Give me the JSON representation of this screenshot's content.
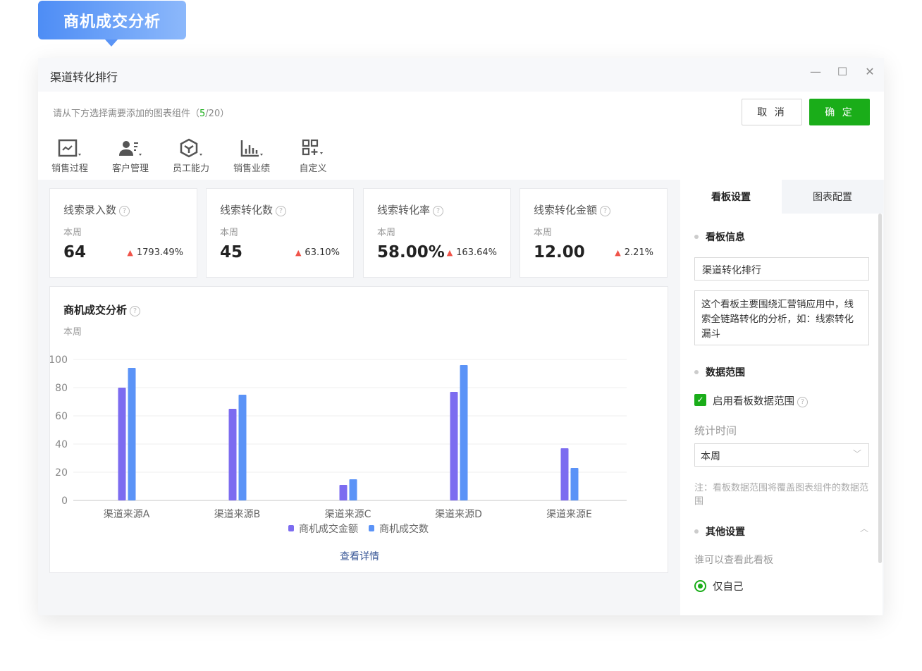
{
  "badge": {
    "title": "商机成交分析"
  },
  "window": {
    "title": "渠道转化排行",
    "minimize_icon": "minimize-icon",
    "maximize_icon": "maximize-icon",
    "close_icon": "close-icon"
  },
  "toolbar": {
    "hint_prefix": "请从下方选择需要添加的图表组件（",
    "hint_count": "5",
    "hint_suffix": "/20）",
    "cancel_label": "取 消",
    "ok_label": "确 定",
    "tools": [
      {
        "label": "销售过程",
        "icon": "line-chart-icon"
      },
      {
        "label": "客户管理",
        "icon": "user-list-icon"
      },
      {
        "label": "员工能力",
        "icon": "hexagon-icon"
      },
      {
        "label": "销售业绩",
        "icon": "bar-chart-icon"
      },
      {
        "label": "自定义",
        "icon": "grid-plus-icon"
      }
    ]
  },
  "kpis": [
    {
      "title": "线索录入数",
      "period": "本周",
      "value": "64",
      "change": "1793.49%"
    },
    {
      "title": "线索转化数",
      "period": "本周",
      "value": "45",
      "change": "63.10%"
    },
    {
      "title": "线索转化率",
      "period": "本周",
      "value": "58.00%",
      "change": "163.64%"
    },
    {
      "title": "线索转化金额",
      "period": "本周",
      "value": "12.00",
      "change": "2.21%"
    }
  ],
  "chart_card": {
    "title": "商机成交分析",
    "period": "本周",
    "detail_link": "查看详情"
  },
  "chart_data": {
    "type": "bar",
    "categories": [
      "渠道来源A",
      "渠道来源B",
      "渠道来源C",
      "渠道来源D",
      "渠道来源E"
    ],
    "series": [
      {
        "name": "商机成交金额",
        "values": [
          80,
          65,
          11,
          77,
          37
        ],
        "color": "#7c6cf0"
      },
      {
        "name": "商机成交数",
        "values": [
          94,
          75,
          15,
          96,
          23
        ],
        "color": "#5b93f7"
      }
    ],
    "ylim": [
      0,
      100
    ],
    "yticks": [
      0,
      20,
      40,
      60,
      80,
      100
    ],
    "grid": true,
    "legend": "bottom"
  },
  "panel": {
    "tabs": [
      {
        "label": "看板设置",
        "active": true
      },
      {
        "label": "图表配置",
        "active": false
      }
    ],
    "info_title": "看板信息",
    "name_value": "渠道转化排行",
    "desc_value": "这个看板主要围绕汇营销应用中，线索全链路转化的分析，如：线索转化漏斗",
    "range_title": "数据范围",
    "enable_label": "启用看板数据范围",
    "enable_checked": true,
    "time_label": "统计时间",
    "time_value": "本周",
    "note": "注：看板数据范围将覆盖图表组件的数据范围",
    "other_title": "其他设置",
    "visibility_label": "谁可以查看此看板",
    "visibility_option": "仅自己",
    "accent": "#1aad19"
  }
}
